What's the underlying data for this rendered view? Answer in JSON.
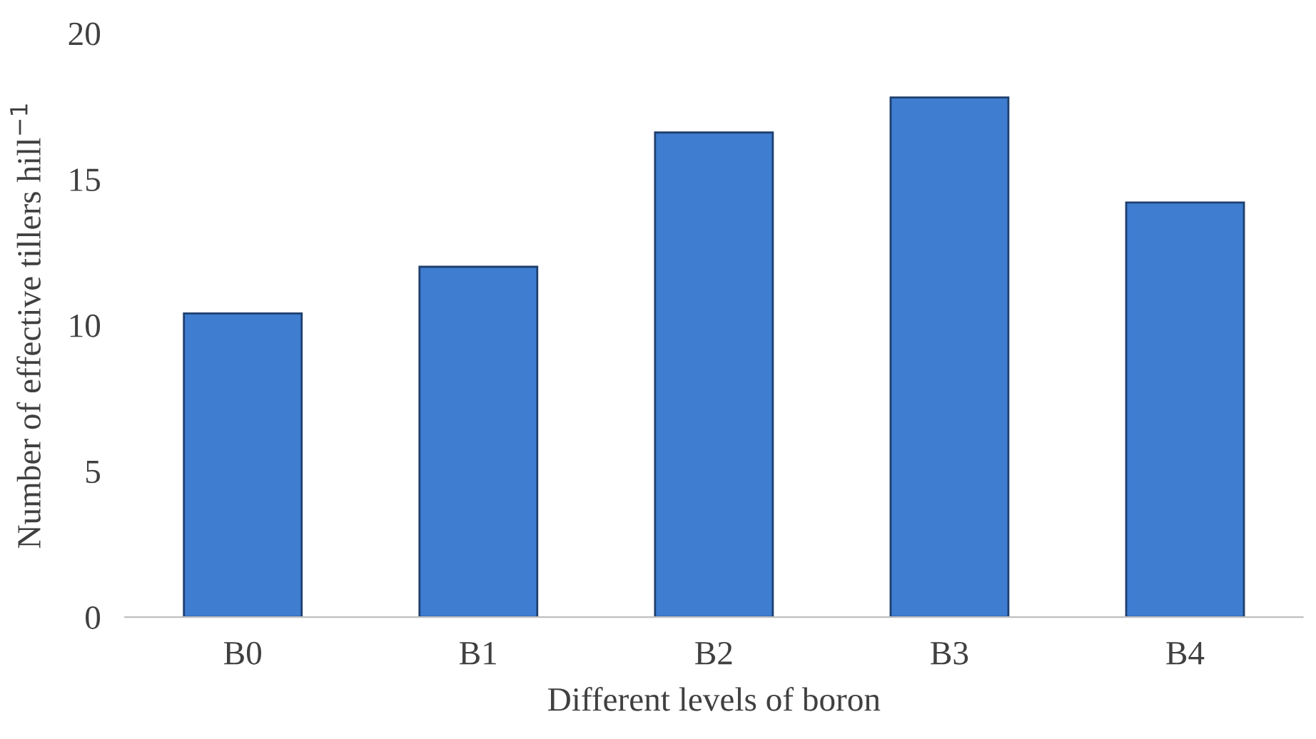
{
  "chart_data": {
    "type": "bar",
    "xlabel": "Different levels of boron",
    "ylabel": "Number of effective tillers hill$^{−1}$",
    "categories": [
      "B0",
      "B1",
      "B2",
      "B3",
      "B4"
    ],
    "values": [
      10.4,
      12.0,
      16.6,
      17.8,
      14.2
    ],
    "color": "#3e7dd0",
    "ylim": [
      0,
      20
    ],
    "yticks": [
      0,
      5,
      10,
      15,
      20
    ],
    "grid": false
  }
}
